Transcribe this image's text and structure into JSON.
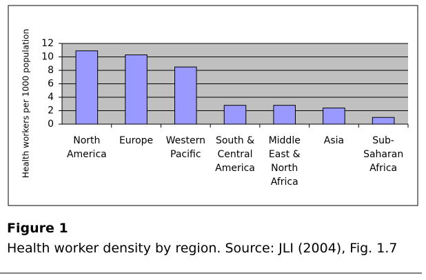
{
  "chart_data": {
    "type": "bar",
    "y_label": "Health workers per 1000 population",
    "categories": [
      "North America",
      "Europe",
      "Western Pacific",
      "South & Central America",
      "Middle East & North Africa",
      "Asia",
      "Sub-Saharan Africa"
    ],
    "values": [
      10.9,
      10.3,
      8.5,
      2.8,
      2.8,
      2.4,
      1.0
    ],
    "color": "#9999ff",
    "ylim": [
      0,
      12
    ],
    "yticks": [
      0,
      2,
      4,
      6,
      8,
      10,
      12
    ],
    "grid": true
  },
  "caption": {
    "label": "Figure 1",
    "text": "Health worker density by region. Source: JLI (2004), Fig. 1.7"
  }
}
